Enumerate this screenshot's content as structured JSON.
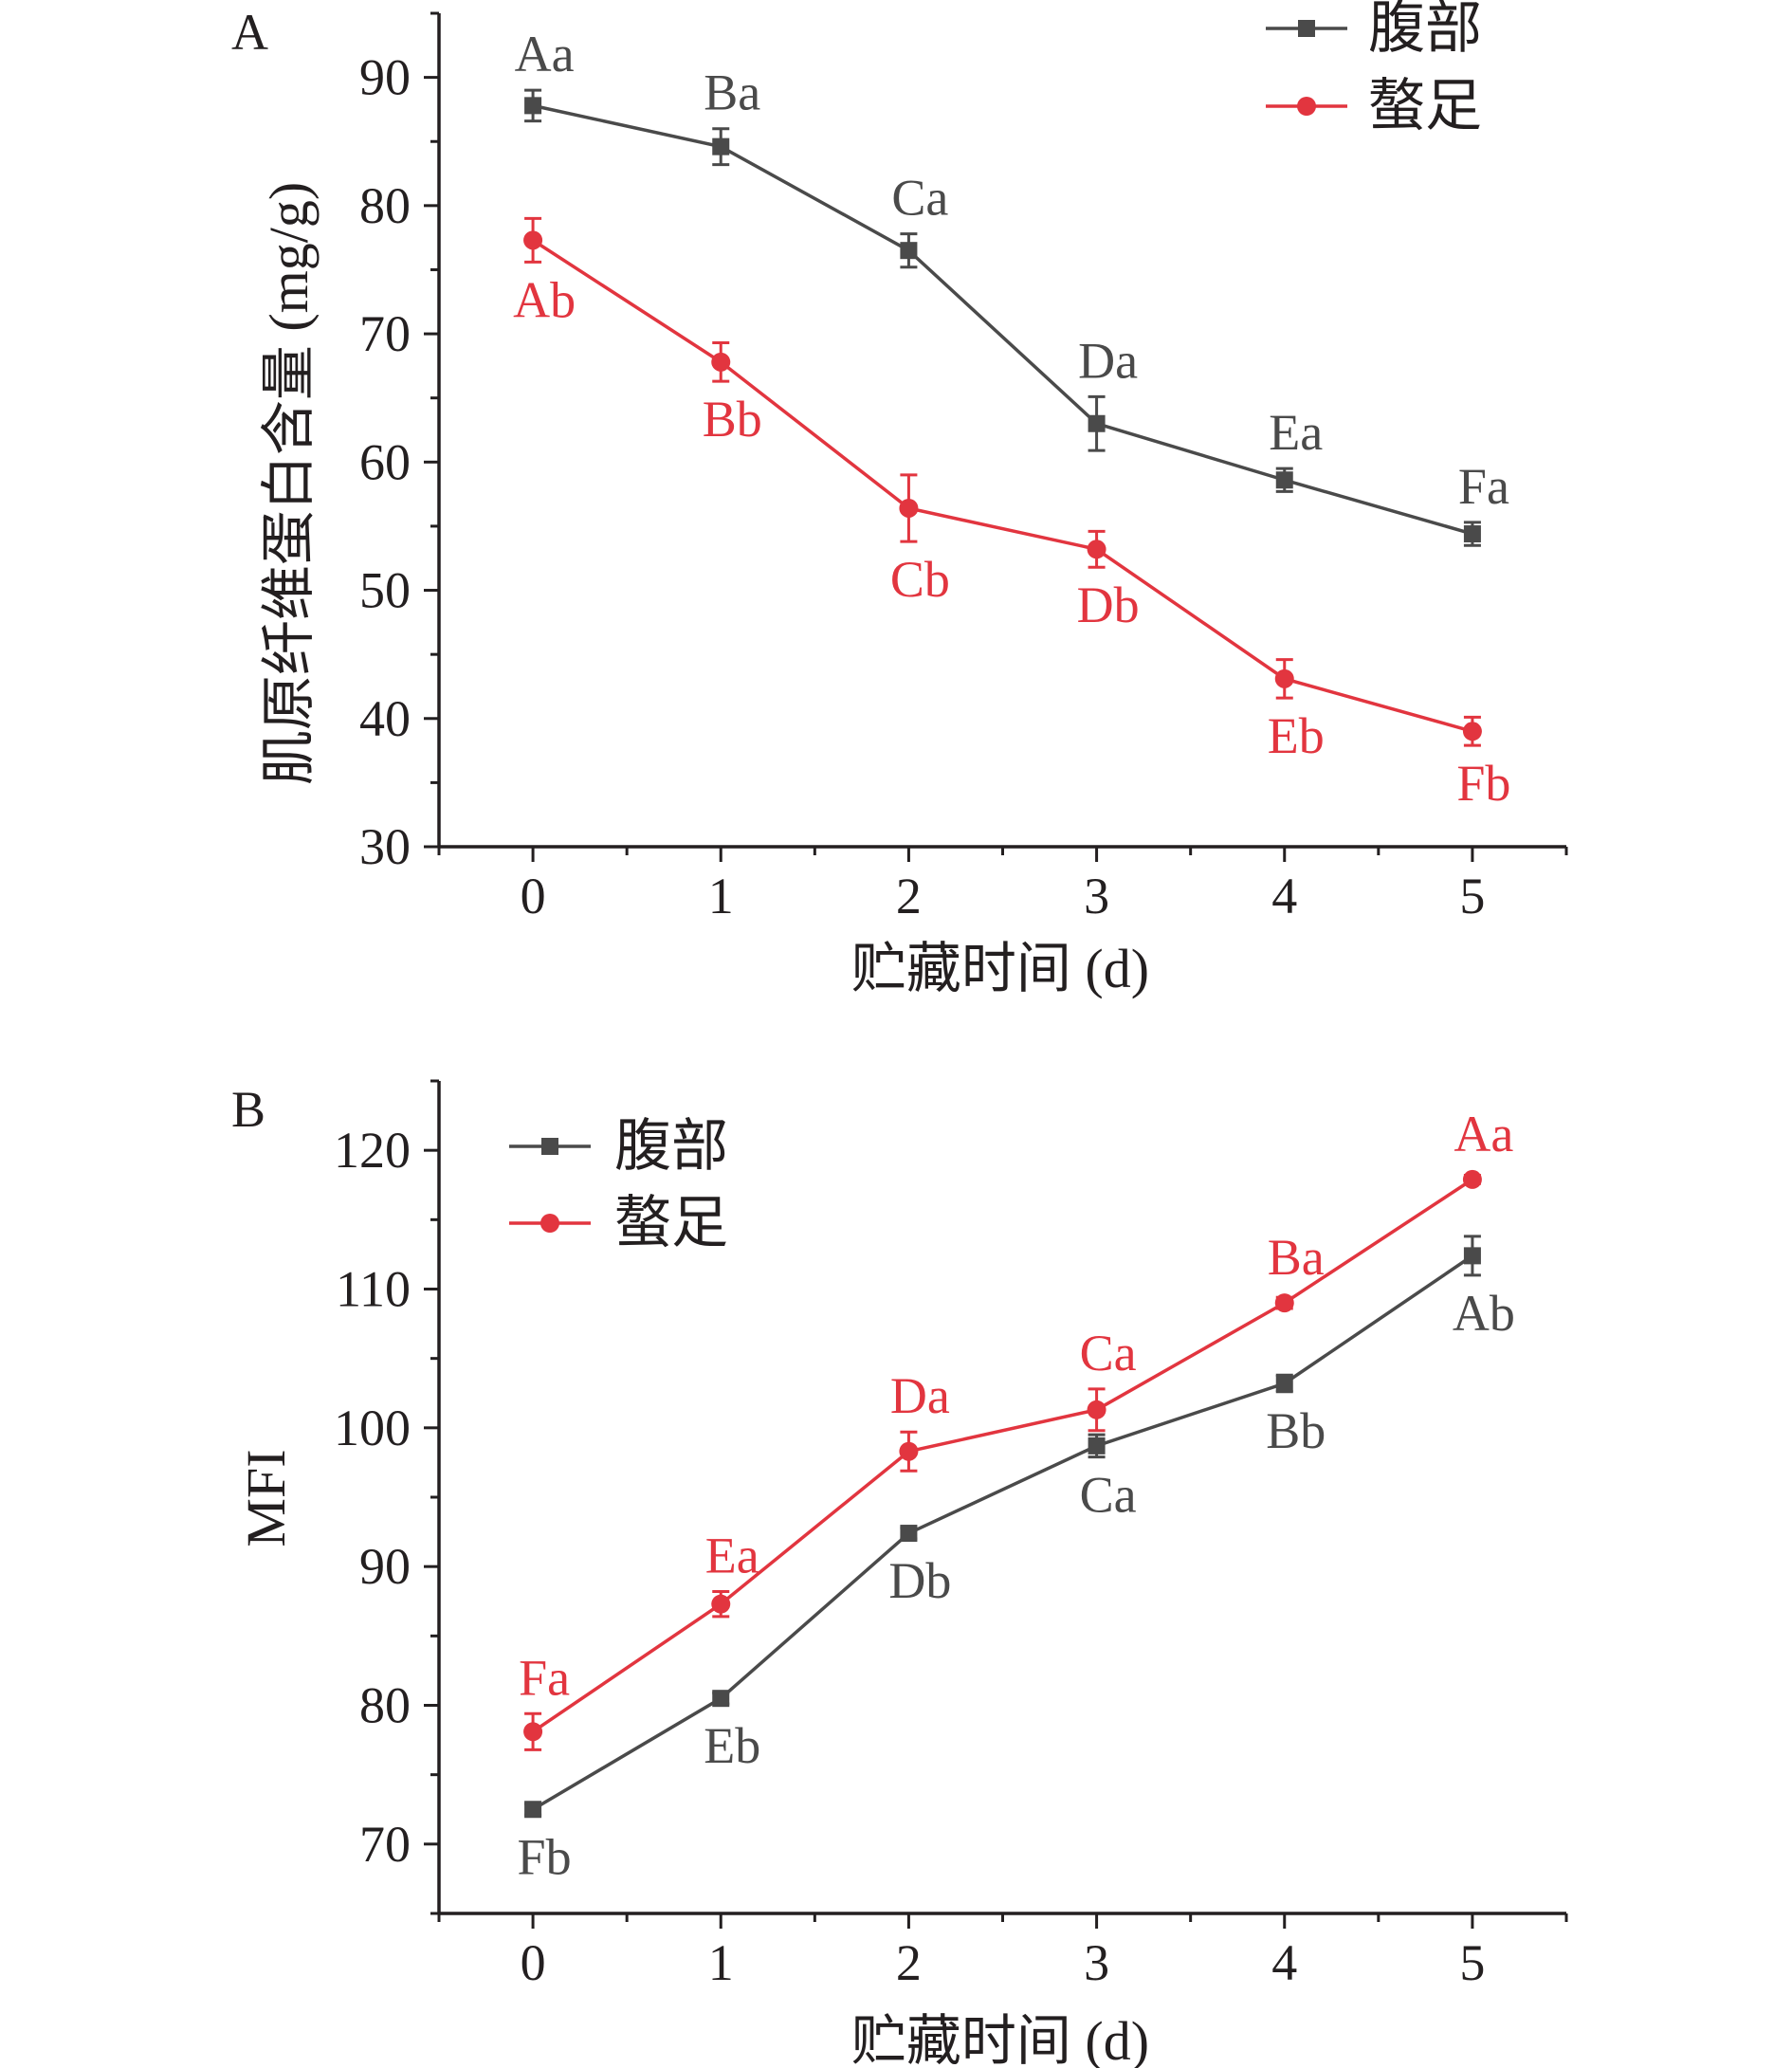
{
  "colors": {
    "abdomen": "#4a4a4a",
    "claw": "#e2353f",
    "axis": "#231f20"
  },
  "chart_data": [
    {
      "type": "line",
      "panel_label": "A",
      "xlabel": "贮藏时间 (d)",
      "ylabel": "肌原纤维蛋白含量 (mg/g)",
      "x": [
        0,
        1,
        2,
        3,
        4,
        5
      ],
      "xticks": [
        "0",
        "1",
        "2",
        "3",
        "4",
        "5"
      ],
      "xlim": [
        -0.5,
        5.5
      ],
      "ylim": [
        30,
        95
      ],
      "yticks": [
        "30",
        "40",
        "50",
        "60",
        "70",
        "80",
        "90"
      ],
      "legend_position": "top-right",
      "series": [
        {
          "name": "腹部",
          "marker": "square",
          "color": "#4a4a4a",
          "values": [
            87.8,
            84.6,
            76.5,
            63.0,
            58.6,
            54.4
          ],
          "errors": [
            1.2,
            1.4,
            1.3,
            2.1,
            0.9,
            0.9
          ],
          "labels": [
            "Aa",
            "Ba",
            "Ca",
            "Da",
            "Ea",
            "Fa"
          ],
          "label_side": "above"
        },
        {
          "name": "螯足",
          "marker": "circle",
          "color": "#e2353f",
          "values": [
            77.3,
            67.8,
            56.4,
            53.2,
            43.1,
            39.0
          ],
          "errors": [
            1.7,
            1.5,
            2.6,
            1.4,
            1.5,
            1.1
          ],
          "labels": [
            "Ab",
            "Bb",
            "Cb",
            "Db",
            "Eb",
            "Fb"
          ],
          "label_side": "below"
        }
      ]
    },
    {
      "type": "line",
      "panel_label": "B",
      "xlabel": "贮藏时间 (d)",
      "ylabel": "MFI",
      "x": [
        0,
        1,
        2,
        3,
        4,
        5
      ],
      "xticks": [
        "0",
        "1",
        "2",
        "3",
        "4",
        "5"
      ],
      "xlim": [
        -0.5,
        5.5
      ],
      "ylim": [
        65,
        125
      ],
      "yticks": [
        "70",
        "80",
        "90",
        "100",
        "110",
        "120"
      ],
      "legend_position": "top-left",
      "series": [
        {
          "name": "腹部",
          "marker": "square",
          "color": "#4a4a4a",
          "values": [
            72.5,
            80.5,
            92.4,
            98.7,
            103.2,
            112.4
          ],
          "errors": [
            0.4,
            0.4,
            0.4,
            0.8,
            0.6,
            1.4
          ],
          "labels": [
            "Fb",
            "Eb",
            "Db",
            "Ca",
            "Bb",
            "Ab"
          ],
          "label_side": "below"
        },
        {
          "name": "螯足",
          "marker": "circle",
          "color": "#e2353f",
          "values": [
            78.1,
            87.3,
            98.3,
            101.3,
            109.0,
            117.9
          ],
          "errors": [
            1.3,
            0.9,
            1.4,
            1.5,
            0.4,
            0.3
          ],
          "labels": [
            "Fa",
            "Ea",
            "Da",
            "Ca",
            "Ba",
            "Aa"
          ],
          "label_side": "above"
        }
      ]
    }
  ]
}
